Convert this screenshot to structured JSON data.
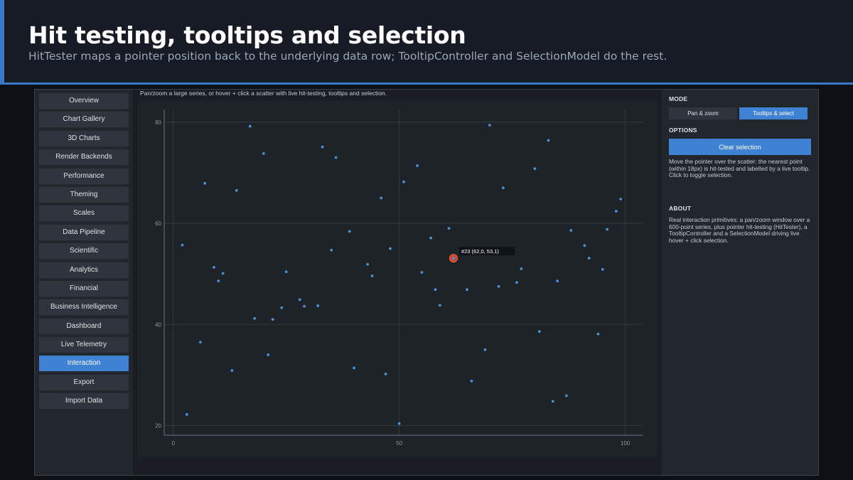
{
  "header": {
    "title": "Hit testing, tooltips and selection",
    "subtitle": "HitTester maps a pointer position back to the underlying data row; TooltipController and SelectionModel do the rest."
  },
  "sidebar": {
    "items": [
      {
        "label": "Overview",
        "active": false
      },
      {
        "label": "Chart Gallery",
        "active": false
      },
      {
        "label": "3D Charts",
        "active": false
      },
      {
        "label": "Render Backends",
        "active": false
      },
      {
        "label": "Performance",
        "active": false
      },
      {
        "label": "Theming",
        "active": false
      },
      {
        "label": "Scales",
        "active": false
      },
      {
        "label": "Data Pipeline",
        "active": false
      },
      {
        "label": "Scientific",
        "active": false
      },
      {
        "label": "Analytics",
        "active": false
      },
      {
        "label": "Financial",
        "active": false
      },
      {
        "label": "Business Intelligence",
        "active": false
      },
      {
        "label": "Dashboard",
        "active": false
      },
      {
        "label": "Live Telemetry",
        "active": false
      },
      {
        "label": "Interaction",
        "active": true
      },
      {
        "label": "Export",
        "active": false
      },
      {
        "label": "Import Data",
        "active": false
      }
    ]
  },
  "main": {
    "caption": "Pan/zoom a large series, or hover + click a scatter with live hit-testing, tooltips and selection.",
    "tooltip": "#23  (62,0, 53,1)"
  },
  "panel": {
    "mode_title": "MODE",
    "mode_options": [
      "Pan & zoom",
      "Tooltips & select"
    ],
    "mode_selected": "Tooltips & select",
    "options_title": "OPTIONS",
    "clear_label": "Clear selection",
    "options_text": "Move the pointer over the scatter: the nearest point (within 18px) is hit-tested and labelled by a live tooltip. Click to toggle selection.",
    "about_title": "ABOUT",
    "about_text": "Real interaction primitives: a pan/zoom window over a 600-point series, plus pointer hit-testing (HitTester), a TooltipController and a SelectionModel driving live hover + click selection."
  },
  "colors": {
    "accent": "#3f82d4",
    "point": "#4a90d9",
    "highlight": "#d0462a"
  },
  "chart_data": {
    "type": "scatter",
    "x_ticks": [
      0,
      50,
      100
    ],
    "y_ticks": [
      20,
      40,
      60,
      80
    ],
    "xlim": [
      -2,
      104
    ],
    "ylim": [
      18.1,
      82.5
    ],
    "grid": true,
    "highlight": {
      "x": 62.0,
      "y": 53.1,
      "label": "#23  (62,0, 53,1)"
    },
    "points": [
      [
        2,
        55.7
      ],
      [
        3,
        22.2
      ],
      [
        6,
        36.5
      ],
      [
        7,
        67.9
      ],
      [
        9,
        51.3
      ],
      [
        10,
        48.6
      ],
      [
        11,
        50.1
      ],
      [
        13,
        30.9
      ],
      [
        14,
        66.5
      ],
      [
        17,
        79.2
      ],
      [
        18,
        41.2
      ],
      [
        20,
        73.8
      ],
      [
        21,
        34.0
      ],
      [
        22,
        41.0
      ],
      [
        24,
        43.3
      ],
      [
        25,
        50.4
      ],
      [
        28,
        44.9
      ],
      [
        29,
        43.6
      ],
      [
        32,
        43.7
      ],
      [
        33,
        75.1
      ],
      [
        35,
        54.7
      ],
      [
        36,
        73.0
      ],
      [
        39,
        58.4
      ],
      [
        40,
        31.4
      ],
      [
        43,
        51.9
      ],
      [
        44,
        49.6
      ],
      [
        46,
        65.0
      ],
      [
        47,
        30.2
      ],
      [
        48,
        55.0
      ],
      [
        50,
        20.4
      ],
      [
        51,
        68.2
      ],
      [
        54,
        71.4
      ],
      [
        55,
        50.3
      ],
      [
        57,
        57.1
      ],
      [
        58,
        46.9
      ],
      [
        59,
        43.8
      ],
      [
        61,
        59.0
      ],
      [
        62,
        53.1
      ],
      [
        65,
        46.9
      ],
      [
        66,
        28.8
      ],
      [
        69,
        35.0
      ],
      [
        70,
        79.4
      ],
      [
        72,
        47.5
      ],
      [
        73,
        67.0
      ],
      [
        76,
        48.3
      ],
      [
        77,
        51.0
      ],
      [
        80,
        70.8
      ],
      [
        81,
        38.6
      ],
      [
        83,
        76.4
      ],
      [
        84,
        24.8
      ],
      [
        85,
        48.6
      ],
      [
        87,
        25.9
      ],
      [
        88,
        58.6
      ],
      [
        91,
        55.6
      ],
      [
        92,
        53.1
      ],
      [
        94,
        38.1
      ],
      [
        95,
        50.9
      ],
      [
        96,
        58.8
      ],
      [
        98,
        62.4
      ],
      [
        99,
        64.8
      ]
    ]
  }
}
